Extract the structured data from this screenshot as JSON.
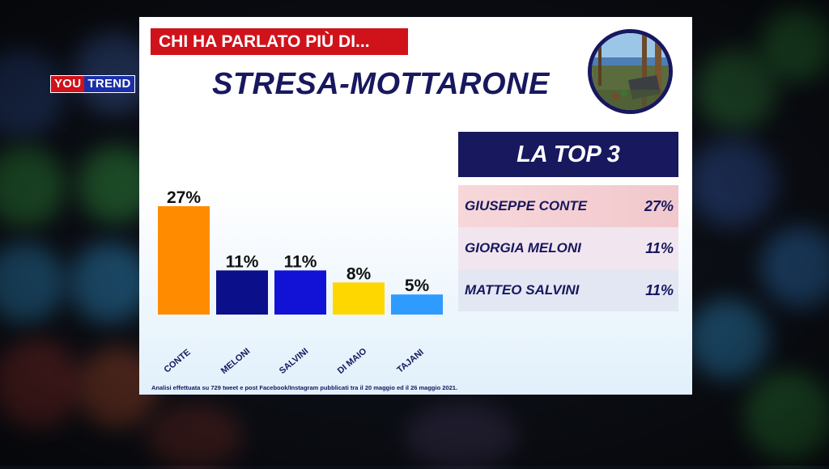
{
  "logo": {
    "you": "YOU",
    "trend": "TREND"
  },
  "kicker": "CHI HA PARLATO PIÙ DI...",
  "title": "STRESA-MOTTARONE",
  "top3": {
    "header": "LA TOP 3",
    "rows": [
      {
        "name": "GIUSEPPE CONTE",
        "value": "27%"
      },
      {
        "name": "GIORGIA MELONI",
        "value": "11%"
      },
      {
        "name": "MATTEO SALVINI",
        "value": "11%"
      }
    ]
  },
  "footnote": "Analisi effettuata su 729 tweet e post Facebook/Instagram pubblicati tra il 20 maggio ed il 26 maggio 2021.",
  "colors": {
    "navy": "#17185e",
    "red": "#d0121b"
  },
  "chart_data": {
    "type": "bar",
    "categories": [
      "CONTE",
      "MELONI",
      "SALVINI",
      "DI MAIO",
      "TAJANI"
    ],
    "values": [
      27,
      11,
      11,
      8,
      5
    ],
    "value_labels": [
      "27%",
      "11%",
      "11%",
      "8%",
      "5%"
    ],
    "bar_colors": [
      "#ff8c00",
      "#0b0f8a",
      "#1212d6",
      "#ffd700",
      "#2f9bff"
    ],
    "title": "",
    "xlabel": "",
    "ylabel": "",
    "ylim": [
      0,
      27
    ],
    "grid": false,
    "legend": "none"
  }
}
